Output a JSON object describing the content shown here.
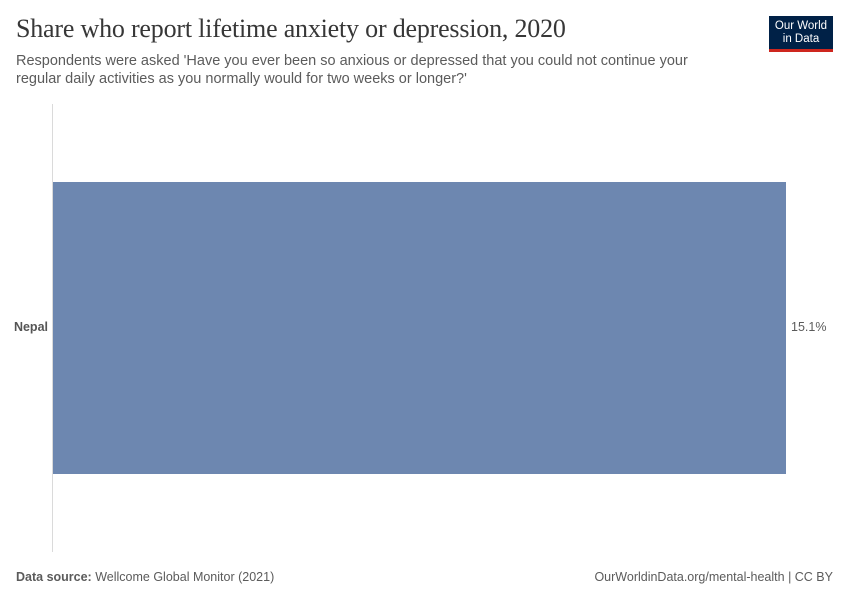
{
  "header": {
    "title": "Share who report lifetime anxiety or depression, 2020",
    "subtitle": "Respondents were asked 'Have you ever been so anxious or depressed that you could not continue your regular daily activities as you normally would for two weeks or longer?'"
  },
  "logo": {
    "line1": "Our World",
    "line2": "in Data",
    "bg_color": "#002147",
    "accent_color": "#ce261e"
  },
  "chart_data": {
    "type": "bar",
    "orientation": "horizontal",
    "title": "Share who report lifetime anxiety or depression, 2020",
    "subtitle": "Respondents were asked 'Have you ever been so anxious or depressed that you could not continue your regular daily activities as you normally would for two weeks or longer?'",
    "categories": [
      "Nepal"
    ],
    "values": [
      15.1
    ],
    "value_labels": [
      "15.1%"
    ],
    "unit": "%",
    "bar_color": "#6d87b0",
    "xlabel": "",
    "ylabel": "",
    "grid": false,
    "legend": null
  },
  "footer": {
    "source_label": "Data source:",
    "source_value": "Wellcome Global Monitor (2021)",
    "right": "OurWorldinData.org/mental-health | CC BY"
  }
}
